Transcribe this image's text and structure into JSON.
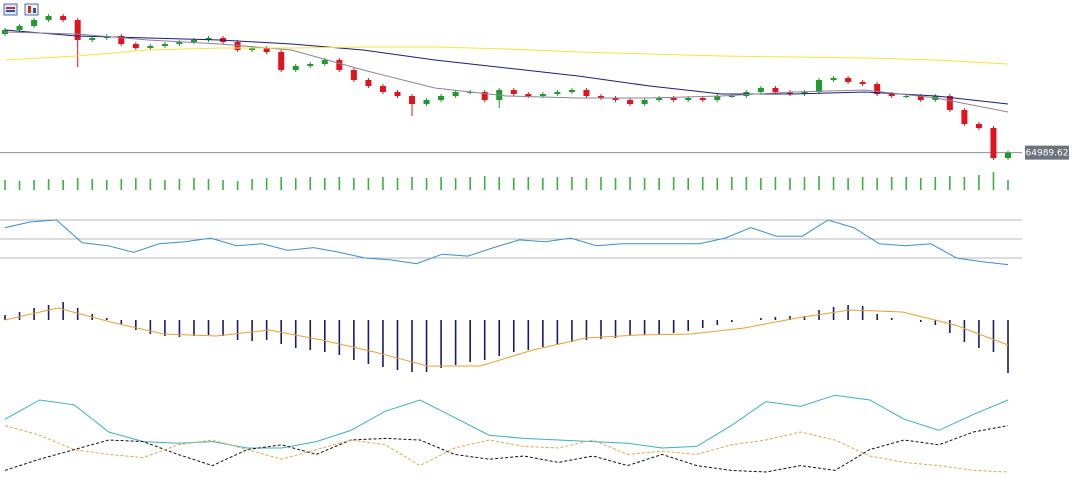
{
  "chart_data": [
    {
      "type": "candlestick",
      "open": [
        69972,
        70140,
        70308,
        70560,
        70728,
        70560,
        69720,
        69804,
        69888,
        69552,
        69384,
        69468,
        69552,
        69636,
        69720,
        69804,
        69636,
        69300,
        69384,
        69216,
        68460,
        68628,
        68712,
        68880,
        68460,
        68040,
        67788,
        67536,
        67368,
        67032,
        67200,
        67368,
        67536,
        67536,
        67200,
        67620,
        67452,
        67368,
        67452,
        67536,
        67620,
        67368,
        67284,
        67200,
        67032,
        67200,
        67284,
        67200,
        67284,
        67200,
        67368,
        67368,
        67536,
        67704,
        67536,
        67452,
        67536,
        68040,
        68124,
        67956,
        67872,
        67452,
        67368,
        67368,
        67200,
        67368,
        66780,
        66192,
        66024,
        64764
      ],
      "high": [
        70224,
        70392,
        70644,
        70812,
        70812,
        70644,
        69888,
        69972,
        69972,
        69636,
        69552,
        69636,
        69720,
        69804,
        69888,
        69888,
        69720,
        69468,
        69468,
        69300,
        68712,
        68796,
        68964,
        68964,
        68544,
        68124,
        67872,
        67620,
        67452,
        67284,
        67452,
        67620,
        67620,
        67620,
        67704,
        67704,
        67536,
        67536,
        67620,
        67704,
        67704,
        67452,
        67368,
        67284,
        67284,
        67368,
        67368,
        67368,
        67368,
        67452,
        67452,
        67620,
        67788,
        67788,
        67620,
        67620,
        68124,
        68208,
        68208,
        68040,
        67956,
        67536,
        67452,
        67452,
        67452,
        67452,
        66864,
        66276,
        66108,
        65073
      ],
      "low": [
        69888,
        70056,
        70224,
        70476,
        70476,
        68586,
        69636,
        69720,
        69468,
        69300,
        69300,
        69384,
        69468,
        69552,
        69636,
        69552,
        69216,
        69216,
        69132,
        68376,
        68376,
        68544,
        68628,
        68376,
        67956,
        67704,
        67452,
        67284,
        66528,
        66948,
        67116,
        67284,
        67452,
        67116,
        66864,
        67368,
        67284,
        67284,
        67368,
        67452,
        67284,
        67200,
        67116,
        66948,
        66948,
        67116,
        67116,
        67116,
        67116,
        67116,
        67284,
        67284,
        67452,
        67452,
        67368,
        67368,
        67452,
        67956,
        67872,
        67788,
        67368,
        67284,
        67284,
        67116,
        67116,
        66696,
        66108,
        65940,
        64680,
        64680
      ],
      "close": [
        70140,
        70308,
        70560,
        70728,
        70560,
        69720,
        69804,
        69888,
        69552,
        69384,
        69468,
        69552,
        69636,
        69720,
        69804,
        69636,
        69300,
        69384,
        69216,
        68460,
        68628,
        68712,
        68880,
        68460,
        68040,
        67788,
        67536,
        67368,
        67032,
        67200,
        67368,
        67536,
        67536,
        67200,
        67620,
        67452,
        67368,
        67452,
        67536,
        67620,
        67368,
        67284,
        67200,
        67032,
        67200,
        67284,
        67200,
        67284,
        67200,
        67368,
        67368,
        67536,
        67704,
        67536,
        67452,
        67536,
        68040,
        68124,
        67956,
        67872,
        67452,
        67368,
        67368,
        67200,
        67368,
        66780,
        66192,
        66024,
        64764,
        64989.62
      ],
      "up_color": "#1f9a2c",
      "down_color": "#e0141e",
      "ylim": [
        64386,
        71400
      ],
      "last_price": 64989.62,
      "series": [
        {
          "color": "#1c1c78",
          "values": [
            70140,
            69888,
            69804,
            69720,
            69552,
            69300,
            68880,
            68544,
            68208,
            67788,
            67452,
            67452,
            67536,
            67368,
            67032
          ]
        },
        {
          "color": "#8c8496",
          "values": [
            70056,
            69972,
            69720,
            69552,
            69300,
            68460,
            67704,
            67368,
            67284,
            67284,
            67368,
            67536,
            67620,
            67284,
            66696
          ]
        },
        {
          "color": "#f2e63c",
          "values": [
            68880,
            69048,
            69300,
            69384,
            69384,
            69426,
            69426,
            69342,
            69216,
            69132,
            69048,
            69006,
            68964,
            68880,
            68712
          ]
        }
      ]
    },
    {
      "type": "bar",
      "color": "#3cb043",
      "ylim": [
        0,
        20
      ],
      "values": [
        10,
        9,
        10,
        11,
        10,
        12,
        11,
        10,
        11,
        12,
        11,
        10,
        11,
        12,
        11,
        10,
        9,
        11,
        12,
        13,
        12,
        13,
        12,
        13,
        12,
        12,
        13,
        12,
        13,
        12,
        13,
        12,
        13,
        14,
        13,
        12,
        13,
        12,
        13,
        13,
        12,
        13,
        12,
        13,
        12,
        12,
        13,
        12,
        13,
        12,
        13,
        13,
        12,
        13,
        12,
        13,
        14,
        13,
        12,
        13,
        12,
        13,
        13,
        12,
        13,
        14,
        13,
        15,
        18,
        10
      ]
    },
    {
      "type": "line",
      "ylim": [
        0,
        100
      ],
      "levels": [
        70,
        50,
        30
      ],
      "series": [
        {
          "color": "#3a8fd0",
          "values": [
            62,
            68,
            70,
            46,
            43,
            36,
            45,
            47,
            51,
            43,
            45,
            38,
            41,
            36,
            30,
            28,
            24,
            34,
            32,
            41,
            49,
            47,
            51,
            43,
            45,
            45,
            45,
            45,
            51,
            62,
            53,
            53,
            70,
            62,
            45,
            43,
            45,
            30,
            26,
            23
          ]
        }
      ]
    },
    {
      "type": "bar",
      "color": "#1a1a6e",
      "ylim": [
        -700,
        300
      ],
      "values": [
        50,
        80,
        120,
        150,
        180,
        120,
        60,
        20,
        -40,
        -100,
        -140,
        -160,
        -170,
        -160,
        -150,
        -160,
        -200,
        -210,
        -200,
        -240,
        -280,
        -300,
        -320,
        -350,
        -400,
        -440,
        -470,
        -500,
        -520,
        -520,
        -480,
        -450,
        -420,
        -400,
        -360,
        -320,
        -300,
        -270,
        -240,
        -220,
        -200,
        -190,
        -180,
        -160,
        -150,
        -140,
        -130,
        -110,
        -80,
        -50,
        -20,
        0,
        20,
        30,
        40,
        40,
        100,
        130,
        150,
        140,
        60,
        20,
        0,
        -20,
        -50,
        -130,
        -220,
        -280,
        -320,
        -530
      ],
      "series": [
        {
          "color": "#e8a030",
          "values": [
            0,
            120,
            -20,
            -140,
            -160,
            -100,
            -200,
            -320,
            -460,
            -460,
            -300,
            -180,
            -150,
            -140,
            -80,
            20,
            100,
            80,
            -50,
            -250
          ]
        }
      ]
    },
    {
      "type": "line",
      "ylim": [
        0,
        60
      ],
      "series": [
        {
          "color": "#3bb0c0",
          "dash": false,
          "values": [
            38,
            50,
            47,
            30,
            24,
            23,
            24,
            20,
            20,
            24,
            31,
            43,
            50,
            39,
            28,
            26,
            25,
            24,
            23,
            20,
            21,
            34,
            49,
            46,
            53,
            50,
            38,
            31,
            41,
            50
          ]
        },
        {
          "color": "#111111",
          "dash": true,
          "values": [
            6,
            13,
            19,
            25,
            24,
            16,
            9,
            19,
            22,
            16,
            25,
            26,
            25,
            16,
            13,
            15,
            11,
            15,
            9,
            16,
            9,
            6,
            5,
            9,
            6,
            19,
            25,
            22,
            30,
            34
          ]
        },
        {
          "color": "#e0a850",
          "dash": true,
          "values": [
            34,
            28,
            19,
            16,
            14,
            22,
            25,
            19,
            13,
            19,
            25,
            22,
            9,
            20,
            25,
            21,
            20,
            25,
            16,
            18,
            16,
            22,
            25,
            30,
            25,
            15,
            11,
            9,
            6,
            5
          ]
        }
      ]
    }
  ]
}
